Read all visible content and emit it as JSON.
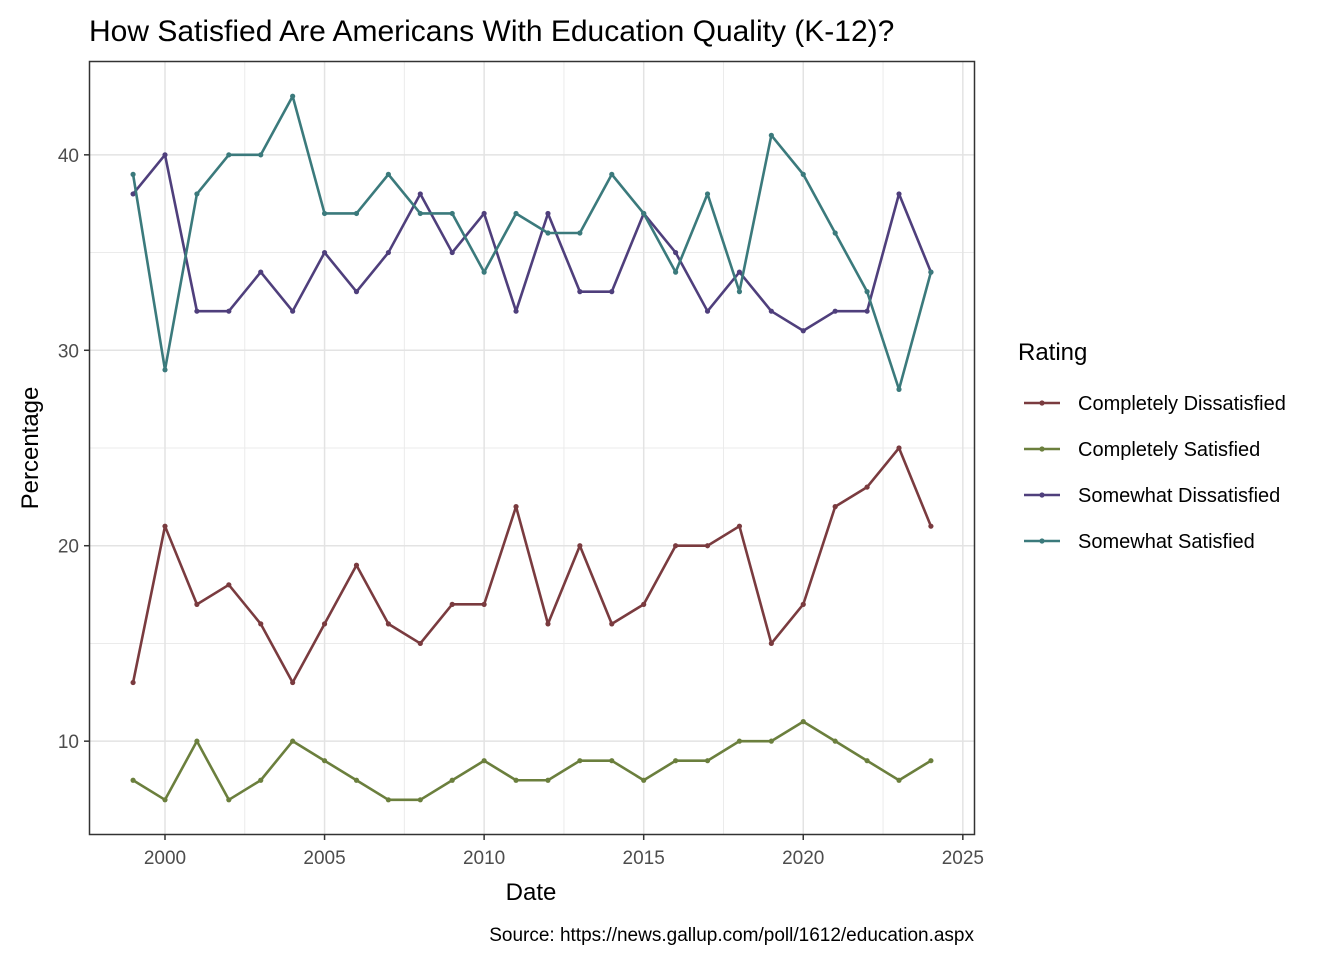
{
  "chart_data": {
    "type": "line",
    "title": "How Satisfied Are Americans With Education Quality (K-12)?",
    "xlabel": "Date",
    "ylabel": "Percentage",
    "caption": "Source: https://news.gallup.com/poll/1612/education.aspx",
    "xlim": [
      1997.65,
      2025.35
    ],
    "ylim": [
      5.25,
      44.75
    ],
    "x_ticks": [
      2000,
      2005,
      2010,
      2015,
      2020,
      2025
    ],
    "y_ticks": [
      10,
      20,
      30,
      40
    ],
    "grid": true,
    "legend": {
      "title": "Rating",
      "position": "right"
    },
    "x": [
      1999,
      2000,
      2001,
      2002,
      2003,
      2004,
      2005,
      2006,
      2007,
      2008,
      2009,
      2010,
      2011,
      2012,
      2013,
      2014,
      2015,
      2016,
      2017,
      2018,
      2019,
      2020,
      2021,
      2022,
      2023,
      2024
    ],
    "series": [
      {
        "name": "Completely Dissatisfied",
        "color": "#7a3b3f",
        "values": [
          13,
          21,
          17,
          18,
          16,
          13,
          16,
          19,
          16,
          15,
          17,
          17,
          22,
          16,
          20,
          16,
          17,
          20,
          20,
          21,
          15,
          17,
          22,
          23,
          25,
          21
        ]
      },
      {
        "name": "Completely Satisfied",
        "color": "#6b7f3d",
        "values": [
          8,
          7,
          10,
          7,
          8,
          10,
          9,
          8,
          7,
          7,
          8,
          9,
          8,
          8,
          9,
          9,
          8,
          9,
          9,
          10,
          10,
          11,
          10,
          9,
          8,
          9
        ]
      },
      {
        "name": "Somewhat Dissatisfied",
        "color": "#4f3f7c",
        "values": [
          38,
          40,
          32,
          32,
          34,
          32,
          35,
          33,
          35,
          38,
          35,
          37,
          32,
          37,
          33,
          33,
          37,
          35,
          32,
          34,
          32,
          31,
          32,
          32,
          38,
          34
        ]
      },
      {
        "name": "Somewhat Satisfied",
        "color": "#3b7a7c",
        "values": [
          39,
          29,
          38,
          40,
          40,
          43,
          37,
          37,
          39,
          37,
          37,
          34,
          37,
          36,
          36,
          39,
          37,
          34,
          38,
          33,
          41,
          39,
          36,
          33,
          28,
          34
        ]
      }
    ]
  }
}
